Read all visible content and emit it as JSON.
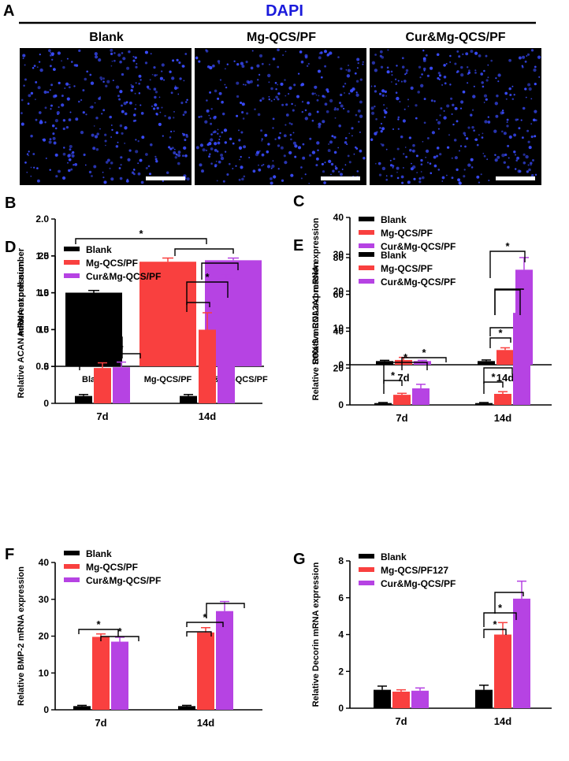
{
  "colors": {
    "blank": "#000000",
    "mg": "#f9403f",
    "cur": "#b643e3",
    "dapi": "#1a1adb",
    "micro_bg": "#000000",
    "dot": "#3a4cff"
  },
  "panel_a": {
    "letter": "A",
    "stain": "DAPI",
    "panels": [
      {
        "label": "Blank"
      },
      {
        "label": "Mg-QCS/PF"
      },
      {
        "label": "Cur&Mg-QCS/PF"
      }
    ]
  },
  "chart_data": [
    {
      "id": "B",
      "letter": "B",
      "type": "bar",
      "categories": [
        "Blank",
        "Mg-QCS/PF",
        "Cur&Mg-QCS/PF"
      ],
      "values": [
        1.0,
        1.42,
        1.44
      ],
      "errors": [
        0.03,
        0.05,
        0.03
      ],
      "ylabel": "Adherent cell number",
      "ylim": [
        0,
        2.0
      ],
      "yticks": [
        "0.0",
        "0.5",
        "1.0",
        "1.5",
        "2.0"
      ],
      "sig": [
        "*"
      ]
    },
    {
      "id": "C",
      "letter": "C",
      "type": "bar",
      "categories": [
        "7d",
        "14d"
      ],
      "series": [
        {
          "name": "Blank",
          "values": [
            1.0,
            1.0
          ],
          "errors": [
            0.2,
            0.3
          ]
        },
        {
          "name": "Mg-QCS/PF",
          "values": [
            1.3,
            4.0
          ],
          "errors": [
            0.7,
            0.6
          ]
        },
        {
          "name": "Cur&Mg-QCS/PF",
          "values": [
            1.0,
            25.8
          ],
          "errors": [
            0.2,
            3.3
          ]
        }
      ],
      "ylabel": "Relative COL2A1 mRNA expression",
      "ylim": [
        0,
        40
      ],
      "yticks": [
        "0",
        "10",
        "20",
        "30",
        "40"
      ],
      "sig": [
        "*",
        "*"
      ]
    },
    {
      "id": "D",
      "letter": "D",
      "type": "bar",
      "categories": [
        "7d",
        "14d"
      ],
      "series": [
        {
          "name": "Blank",
          "values": [
            1.0,
            1.0
          ],
          "errors": [
            0.2,
            0.2
          ]
        },
        {
          "name": "Mg-QCS/PF",
          "values": [
            4.8,
            10.0
          ],
          "errors": [
            0.7,
            2.3
          ]
        },
        {
          "name": "Cur&Mg-QCS/PF",
          "values": [
            4.9,
            17.0
          ],
          "errors": [
            0.7,
            0.6
          ]
        }
      ],
      "ylabel": "Relative ACAN mRNA expression",
      "ylim": [
        0,
        20
      ],
      "yticks": [
        "0",
        "5",
        "10",
        "15",
        "20"
      ],
      "sig": [
        "*",
        "*",
        "*"
      ]
    },
    {
      "id": "E",
      "letter": "E",
      "type": "bar",
      "categories": [
        "7d",
        "14d"
      ],
      "series": [
        {
          "name": "Blank",
          "values": [
            1.0,
            1.0
          ],
          "errors": [
            0.3,
            0.3
          ]
        },
        {
          "name": "Mg-QCS/PF",
          "values": [
            5.5,
            6.0
          ],
          "errors": [
            0.8,
            1.2
          ]
        },
        {
          "name": "Cur&Mg-QCS/PF",
          "values": [
            9.0,
            50.0
          ],
          "errors": [
            2.2,
            9.5
          ]
        }
      ],
      "ylabel": "Relative SOX-9 mRNA expression",
      "ylim": [
        0,
        80
      ],
      "yticks": [
        "0",
        "20",
        "40",
        "60",
        "80"
      ],
      "sig": [
        "*",
        "*",
        "*",
        "*"
      ]
    },
    {
      "id": "F",
      "letter": "F",
      "type": "bar",
      "categories": [
        "7d",
        "14d"
      ],
      "series": [
        {
          "name": "Blank",
          "values": [
            1.0,
            1.0
          ],
          "errors": [
            0.2,
            0.2
          ]
        },
        {
          "name": "Mg-QCS/PF",
          "values": [
            19.8,
            21.0
          ],
          "errors": [
            0.8,
            1.3
          ]
        },
        {
          "name": "Cur&Mg-QCS/PF",
          "values": [
            18.5,
            26.8
          ],
          "errors": [
            1.2,
            2.6
          ]
        }
      ],
      "ylabel": "Relative BMP-2 mRNA expression",
      "ylim": [
        0,
        40
      ],
      "yticks": [
        "0",
        "10",
        "20",
        "30",
        "40"
      ],
      "sig": [
        "*",
        "*",
        "*"
      ]
    },
    {
      "id": "G",
      "letter": "G",
      "type": "bar",
      "categories": [
        "7d",
        "14d"
      ],
      "series": [
        {
          "name": "Blank",
          "values": [
            1.0,
            1.0
          ],
          "errors": [
            0.2,
            0.25
          ]
        },
        {
          "name": "Mg-QCS/PF127",
          "values": [
            0.9,
            4.0
          ],
          "errors": [
            0.1,
            0.65
          ]
        },
        {
          "name": "Cur&Mg-QCS/PF",
          "values": [
            0.95,
            5.95
          ],
          "errors": [
            0.15,
            0.95
          ]
        }
      ],
      "ylabel": "Relative Decorin mRNA expression",
      "ylim": [
        0,
        8
      ],
      "yticks": [
        "0",
        "2",
        "4",
        "6",
        "8"
      ],
      "sig": [
        "*",
        "*"
      ]
    }
  ]
}
